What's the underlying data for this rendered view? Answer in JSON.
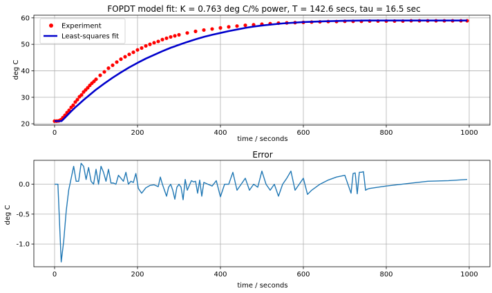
{
  "chart_data": [
    {
      "type": "scatter",
      "title": "FOPDT model fit: K = 0.763 deg C/% power, T =  142.6 secs, tau =   16.5 sec",
      "xlabel": "time / seconds",
      "ylabel": "deg C",
      "xlim": [
        -50,
        1050
      ],
      "ylim": [
        19.5,
        61
      ],
      "xticks": [
        0,
        200,
        400,
        600,
        800,
        1000
      ],
      "yticks": [
        20,
        30,
        40,
        50,
        60
      ],
      "grid": true,
      "legend": {
        "placement": "top-left",
        "entries": [
          {
            "label": "Experiment",
            "marker": "dot",
            "color": "#ff0000"
          },
          {
            "label": "Least-squares fit",
            "marker": "line",
            "color": "#0000cc"
          }
        ]
      },
      "series": [
        {
          "name": "Experiment",
          "color": "#ff0000",
          "x": [
            0,
            5,
            10,
            15,
            20,
            25,
            30,
            35,
            40,
            45,
            50,
            55,
            60,
            65,
            70,
            75,
            80,
            85,
            90,
            95,
            100,
            110,
            120,
            130,
            140,
            150,
            160,
            170,
            180,
            190,
            200,
            210,
            220,
            230,
            240,
            250,
            260,
            270,
            280,
            290,
            300,
            320,
            340,
            360,
            380,
            400,
            420,
            440,
            460,
            480,
            500,
            520,
            540,
            560,
            580,
            600,
            620,
            640,
            660,
            680,
            700,
            720,
            740,
            760,
            780,
            800,
            820,
            840,
            860,
            880,
            900,
            920,
            940,
            960,
            980,
            995
          ],
          "y": [
            21.0,
            21.0,
            21.1,
            21.5,
            22.3,
            23.2,
            24.2,
            25.1,
            26.2,
            27.0,
            28.2,
            29.1,
            30.2,
            30.9,
            32.0,
            32.8,
            33.6,
            34.5,
            35.3,
            36.0,
            36.8,
            38.3,
            39.6,
            41.0,
            42.1,
            43.3,
            44.4,
            45.3,
            46.2,
            47.0,
            47.9,
            48.6,
            49.4,
            50.0,
            50.6,
            51.1,
            51.8,
            52.3,
            52.8,
            53.2,
            53.6,
            54.3,
            54.9,
            55.4,
            55.8,
            56.2,
            56.6,
            56.9,
            57.2,
            57.4,
            57.6,
            57.8,
            58.0,
            58.1,
            58.2,
            58.3,
            58.4,
            58.5,
            58.6,
            58.6,
            58.7,
            58.7,
            58.7,
            58.8,
            58.8,
            58.8,
            58.8,
            58.8,
            58.9,
            58.9,
            58.9,
            58.9,
            58.9,
            58.9,
            58.9,
            58.9
          ]
        },
        {
          "name": "Least-squares fit",
          "color": "#0000cc",
          "x": [
            0,
            16.5,
            20,
            30,
            40,
            50,
            60,
            70,
            80,
            90,
            100,
            120,
            140,
            160,
            180,
            200,
            220,
            240,
            260,
            280,
            300,
            320,
            340,
            360,
            380,
            400,
            420,
            440,
            460,
            480,
            500,
            550,
            600,
            650,
            700,
            750,
            800,
            850,
            900,
            950,
            995
          ],
          "y": [
            21.0,
            21.0,
            21.5,
            23.1,
            24.7,
            26.2,
            27.6,
            29.0,
            30.3,
            31.6,
            32.9,
            35.2,
            37.4,
            39.4,
            41.3,
            43.0,
            44.6,
            46.0,
            47.4,
            48.7,
            49.8,
            50.9,
            51.9,
            52.8,
            53.6,
            54.3,
            55.0,
            55.6,
            56.2,
            56.7,
            57.1,
            57.9,
            58.4,
            58.7,
            58.9,
            59.0,
            59.0,
            59.0,
            59.0,
            59.0,
            59.0
          ]
        }
      ]
    },
    {
      "type": "line",
      "title": "Error",
      "xlabel": "time / seconds",
      "ylabel": "deg C",
      "xlim": [
        -50,
        1050
      ],
      "ylim": [
        -1.38,
        0.4
      ],
      "xticks": [
        0,
        200,
        400,
        600,
        800,
        1000
      ],
      "yticks": [
        -1.0,
        -0.5,
        0.0
      ],
      "grid": true,
      "series": [
        {
          "color": "#1f77b4",
          "x": [
            0,
            8,
            16,
            22,
            28,
            34,
            40,
            46,
            52,
            58,
            64,
            70,
            76,
            82,
            88,
            94,
            100,
            106,
            112,
            118,
            124,
            130,
            136,
            142,
            148,
            154,
            160,
            166,
            172,
            178,
            184,
            190,
            196,
            202,
            210,
            220,
            230,
            240,
            250,
            255,
            260,
            265,
            270,
            275,
            280,
            285,
            290,
            295,
            300,
            305,
            310,
            315,
            320,
            325,
            330,
            335,
            340,
            345,
            350,
            355,
            360,
            370,
            380,
            390,
            400,
            410,
            420,
            430,
            440,
            450,
            460,
            470,
            480,
            490,
            500,
            510,
            520,
            530,
            540,
            550,
            560,
            570,
            580,
            590,
            600,
            610,
            620,
            640,
            660,
            680,
            700,
            715,
            720,
            725,
            730,
            735,
            740,
            745,
            750,
            755,
            760,
            780,
            800,
            850,
            900,
            950,
            995
          ],
          "y": [
            0.0,
            0.0,
            -1.3,
            -0.95,
            -0.45,
            -0.1,
            0.1,
            0.3,
            0.05,
            0.05,
            0.35,
            0.3,
            0.08,
            0.28,
            0.05,
            0.0,
            0.25,
            0.0,
            0.3,
            0.2,
            0.05,
            0.25,
            0.02,
            0.02,
            0.0,
            0.15,
            0.1,
            0.05,
            0.2,
            0.0,
            0.05,
            0.03,
            0.18,
            -0.07,
            -0.15,
            -0.06,
            -0.02,
            -0.01,
            -0.04,
            0.12,
            0.0,
            -0.1,
            -0.2,
            -0.05,
            0.0,
            -0.1,
            -0.25,
            -0.05,
            0.0,
            -0.05,
            -0.26,
            0.08,
            -0.1,
            -0.02,
            0.06,
            0.04,
            0.05,
            -0.15,
            0.07,
            -0.2,
            0.03,
            0.0,
            -0.03,
            0.06,
            -0.21,
            0.0,
            0.0,
            0.2,
            -0.1,
            0.0,
            0.1,
            -0.1,
            0.0,
            -0.05,
            0.22,
            0.0,
            -0.1,
            0.0,
            -0.2,
            0.0,
            0.1,
            0.22,
            -0.1,
            0.0,
            0.1,
            -0.17,
            -0.1,
            0.0,
            0.07,
            0.12,
            0.15,
            -0.15,
            0.18,
            0.19,
            -0.16,
            0.2,
            0.2,
            0.21,
            -0.1,
            -0.08,
            -0.07,
            -0.05,
            -0.03,
            0.01,
            0.05,
            0.06,
            0.08
          ]
        }
      ]
    }
  ]
}
